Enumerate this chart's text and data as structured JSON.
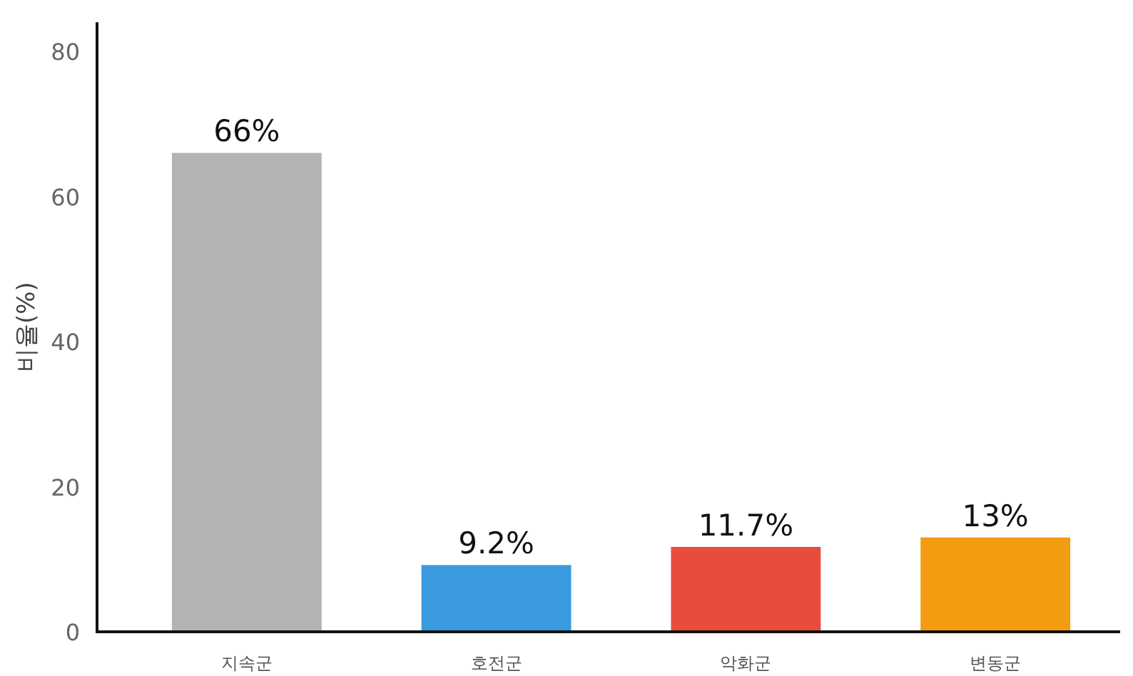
{
  "chart_data": {
    "type": "bar",
    "ylabel": "비율(%)",
    "categories": [
      "지속군",
      "호전군",
      "악화군",
      "변동군"
    ],
    "values": [
      66,
      9.2,
      11.7,
      13
    ],
    "colors": [
      "#b3b3b3",
      "#3a9ae0",
      "#e84c3d",
      "#f39c12"
    ],
    "value_labels": [
      "66%",
      "9.2%",
      "11.7%",
      "13%"
    ],
    "ylim": [
      0,
      84
    ],
    "yticks": [
      0,
      20,
      40,
      60,
      80
    ],
    "grid": false
  }
}
